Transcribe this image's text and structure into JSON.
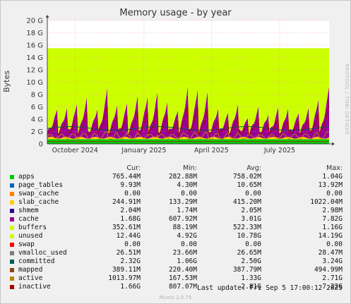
{
  "chart_data": {
    "type": "area",
    "title": "Memory usage - by year",
    "ylabel": "Bytes",
    "xlabel": "",
    "side_label": "RRDTOOL / TOBI OETIKER",
    "y_ticks": [
      "0",
      "2 G",
      "4 G",
      "6 G",
      "8 G",
      "10 G",
      "12 G",
      "14 G",
      "16 G",
      "18 G",
      "20 G"
    ],
    "y_tick_values_gb": [
      0,
      2,
      4,
      6,
      8,
      10,
      12,
      14,
      16,
      18,
      20
    ],
    "ylim_gb": [
      0,
      20
    ],
    "x_ticks": [
      "October 2024",
      "January 2025",
      "April 2025",
      "July 2025"
    ],
    "x_tick_dates": [
      "2024-10-01",
      "2025-01-01",
      "2025-04-01",
      "2025-07-01"
    ],
    "x_range": [
      "2024-08-25",
      "2025-09-05"
    ],
    "grid": true,
    "stacked": true,
    "colors": {
      "plot_background": "#ffffff",
      "page_background": "#f0f0f0",
      "grid": "#ff9090",
      "axis": "#444444"
    },
    "legend_columns": [
      "Cur:",
      "Min:",
      "Avg:",
      "Max:"
    ],
    "series": [
      {
        "name": "apps",
        "color": "#00cc00",
        "cur": "765.44M",
        "min": "282.88M",
        "avg": "758.02M",
        "max": "1.04G"
      },
      {
        "name": "page_tables",
        "color": "#0066b3",
        "cur": "9.93M",
        "min": "4.30M",
        "avg": "10.65M",
        "max": "13.92M"
      },
      {
        "name": "swap_cache",
        "color": "#ff8000",
        "cur": "0.00",
        "min": "0.00",
        "avg": "0.00",
        "max": "0.00"
      },
      {
        "name": "slab_cache",
        "color": "#ffcc00",
        "cur": "244.91M",
        "min": "133.29M",
        "avg": "415.20M",
        "max": "1022.04M"
      },
      {
        "name": "shmem",
        "color": "#330099",
        "cur": "2.04M",
        "min": "1.74M",
        "avg": "2.05M",
        "max": "2.98M"
      },
      {
        "name": "cache",
        "color": "#990099",
        "cur": "1.68G",
        "min": "607.92M",
        "avg": "3.01G",
        "max": "7.82G"
      },
      {
        "name": "buffers",
        "color": "#ccff00",
        "cur": "352.61M",
        "min": "88.19M",
        "avg": "522.33M",
        "max": "1.16G"
      },
      {
        "name": "unused",
        "color": "#ccff00",
        "cur": "12.44G",
        "min": "4.92G",
        "avg": "10.78G",
        "max": "14.19G"
      },
      {
        "name": "swap",
        "color": "#ff0000",
        "cur": "0.00",
        "min": "0.00",
        "avg": "0.00",
        "max": "0.00"
      },
      {
        "name": "vmalloc_used",
        "color": "#808080",
        "cur": "26.51M",
        "min": "23.66M",
        "avg": "26.65M",
        "max": "28.47M"
      },
      {
        "name": "committed",
        "color": "#005d57",
        "cur": "2.32G",
        "min": "1.06G",
        "avg": "2.50G",
        "max": "3.24G"
      },
      {
        "name": "mapped",
        "color": "#8b4513",
        "cur": "389.11M",
        "min": "220.40M",
        "avg": "387.79M",
        "max": "494.99M"
      },
      {
        "name": "active",
        "color": "#b8860b",
        "cur": "1013.97M",
        "min": "167.53M",
        "avg": "1.33G",
        "max": "2.71G"
      },
      {
        "name": "inactive",
        "color": "#aa0000",
        "cur": "1.66G",
        "min": "807.07M",
        "avg": "2.81G",
        "max": "7.22G"
      }
    ],
    "area_values_gb": {
      "apps_approx": 0.75,
      "buffers_approx": 0.5,
      "cache_peaks_gb": [
        5.0,
        5.3,
        6.2,
        7.5,
        5.0,
        8.8,
        6.0,
        6.5,
        7.2,
        7.3,
        8.2,
        6.7,
        4.8,
        9.0,
        8.8,
        8.5,
        5.1,
        4.5,
        6.1,
        3.8,
        5.4,
        4.2,
        5.5,
        5.5,
        4.4,
        5.3,
        7.0,
        8.6
      ],
      "total_top_gb": 15.5
    }
  },
  "update_text": "Last update: Fri Sep  5 17:00:12 2025",
  "footer_text": "Munin 2.0.75"
}
